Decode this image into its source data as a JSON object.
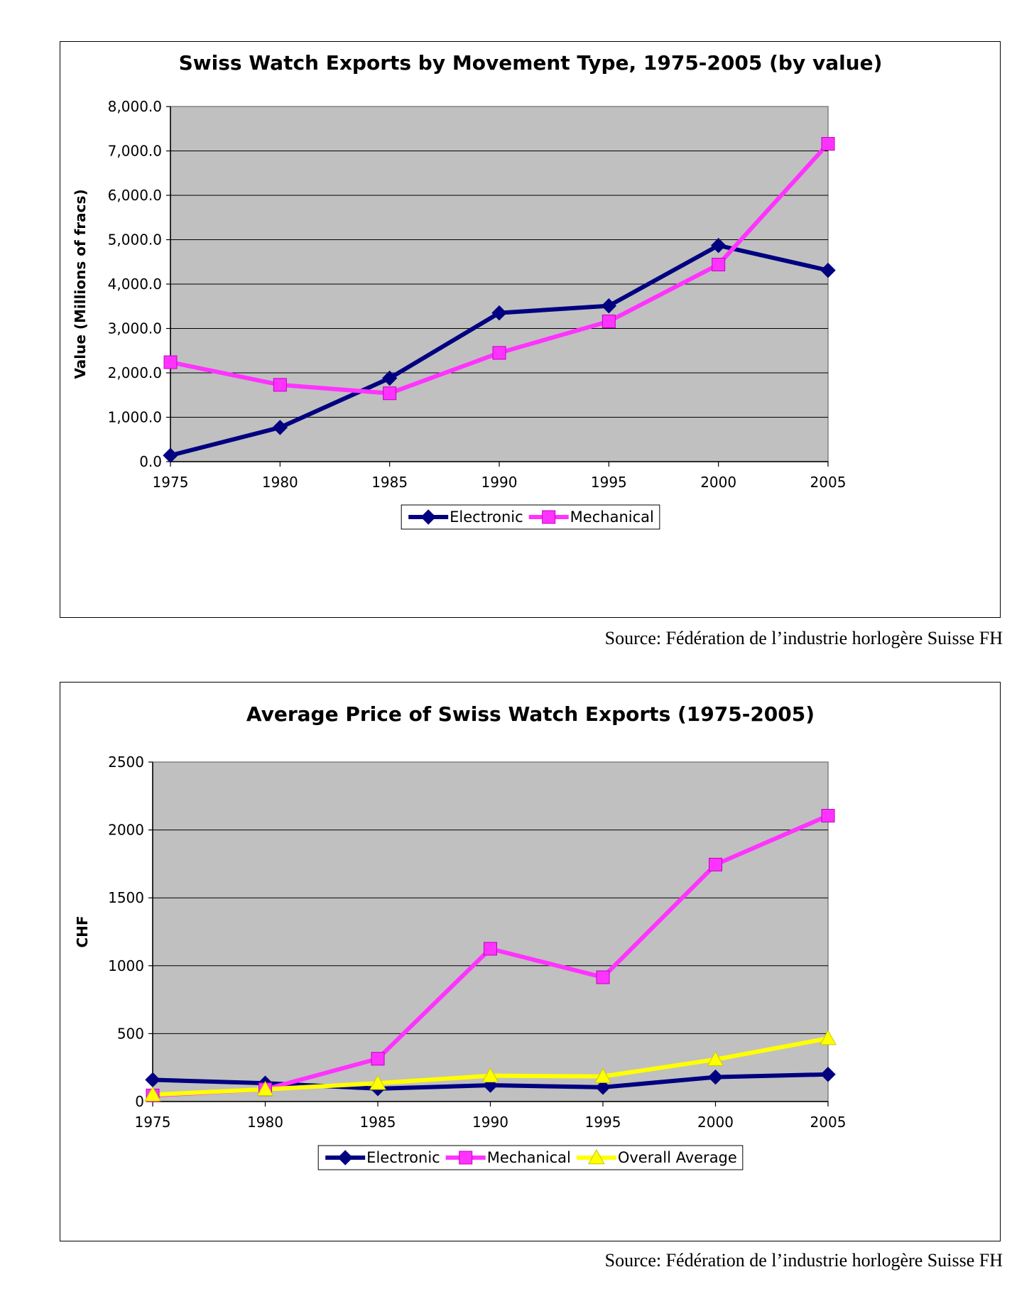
{
  "chart_data": [
    {
      "type": "line",
      "title": "Swiss Watch Exports by Movement Type, 1975-2005 (by value)",
      "xlabel": "",
      "ylabel": "Value (Millions of fracs)",
      "categories": [
        "1975",
        "1980",
        "1985",
        "1990",
        "1995",
        "2000",
        "2005"
      ],
      "ylim": [
        0,
        8000
      ],
      "yticks": [
        "0.0",
        "1,000.0",
        "2,000.0",
        "3,000.0",
        "4,000.0",
        "5,000.0",
        "6,000.0",
        "7,000.0",
        "8,000.0"
      ],
      "grid": true,
      "legend": "bottom",
      "series": [
        {
          "name": "Electronic",
          "color": "#000080",
          "marker": "diamond",
          "values": [
            140,
            770,
            1880,
            3350,
            3510,
            4870,
            4310
          ]
        },
        {
          "name": "Mechanical",
          "color": "#ff33ff",
          "marker": "square",
          "values": [
            2240,
            1730,
            1540,
            2450,
            3160,
            4440,
            7160
          ]
        }
      ]
    },
    {
      "type": "line",
      "title": "Average Price of Swiss Watch Exports (1975-2005)",
      "xlabel": "",
      "ylabel": "CHF",
      "categories": [
        "1975",
        "1980",
        "1985",
        "1990",
        "1995",
        "2000",
        "2005"
      ],
      "ylim": [
        0,
        2500
      ],
      "yticks": [
        "0",
        "500",
        "1000",
        "1500",
        "2000",
        "2500"
      ],
      "grid": true,
      "legend": "bottom",
      "series": [
        {
          "name": "Electronic",
          "color": "#000080",
          "marker": "diamond",
          "values": [
            160,
            135,
            95,
            120,
            105,
            180,
            200
          ]
        },
        {
          "name": "Mechanical",
          "color": "#ff33ff",
          "marker": "square",
          "values": [
            45,
            90,
            315,
            1125,
            915,
            1745,
            2105
          ]
        },
        {
          "name": "Overall Average",
          "color": "#ffff00",
          "marker": "triangle",
          "values": [
            50,
            90,
            135,
            190,
            185,
            310,
            465
          ]
        }
      ]
    }
  ],
  "sources": [
    "Source: Fédération de l’industrie horlogère Suisse FH",
    "Source: Fédération de l’industrie horlogère Suisse FH"
  ]
}
